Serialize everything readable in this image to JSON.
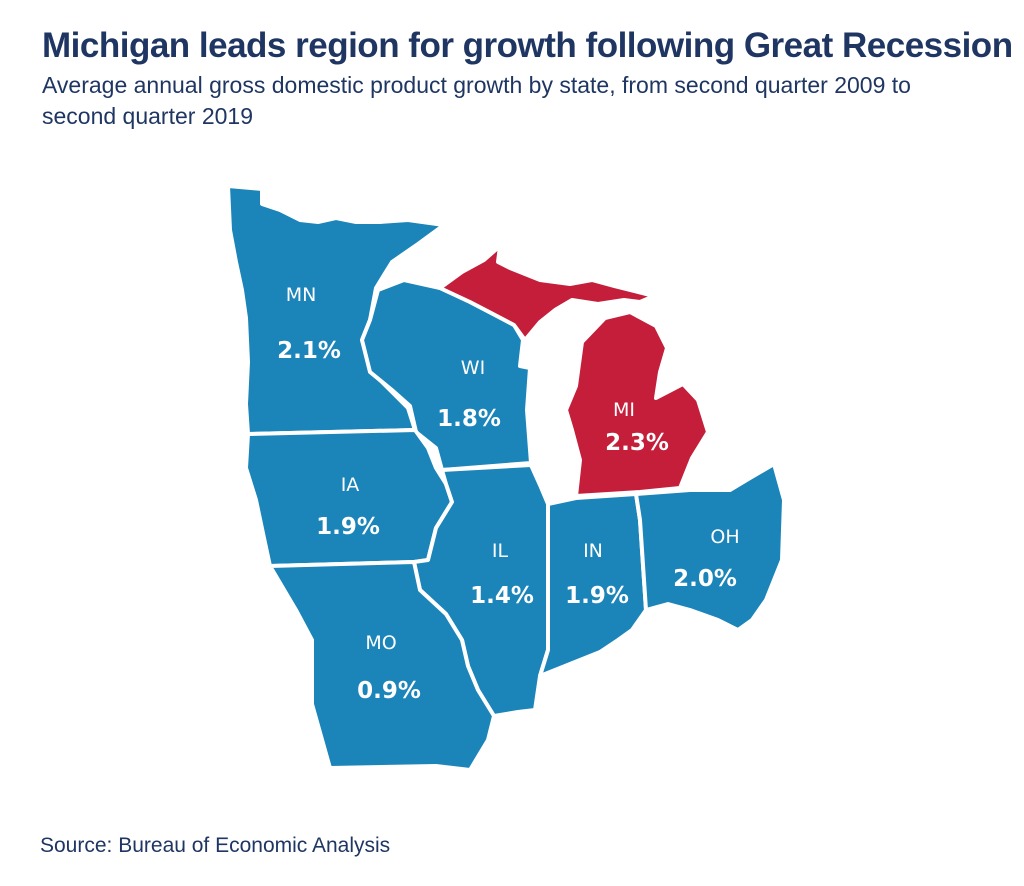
{
  "title": "Michigan leads region for growth following Great Recession",
  "subtitle": "Average annual gross domestic product growth by state, from second quarter 2009 to second quarter 2019",
  "source": "Source: Bureau of Economic Analysis",
  "colors": {
    "default_state": "#1b84b9",
    "highlight_state": "#c41e3a",
    "border": "#ffffff",
    "title": "#1f3663"
  },
  "states": {
    "mn": {
      "abbr": "MN",
      "value": "2.1%"
    },
    "wi": {
      "abbr": "WI",
      "value": "1.8%"
    },
    "mi": {
      "abbr": "MI",
      "value": "2.3%"
    },
    "ia": {
      "abbr": "IA",
      "value": "1.9%"
    },
    "il": {
      "abbr": "IL",
      "value": "1.4%"
    },
    "in": {
      "abbr": "IN",
      "value": "1.9%"
    },
    "oh": {
      "abbr": "OH",
      "value": "2.0%"
    },
    "mo": {
      "abbr": "MO",
      "value": "0.9%"
    }
  }
}
